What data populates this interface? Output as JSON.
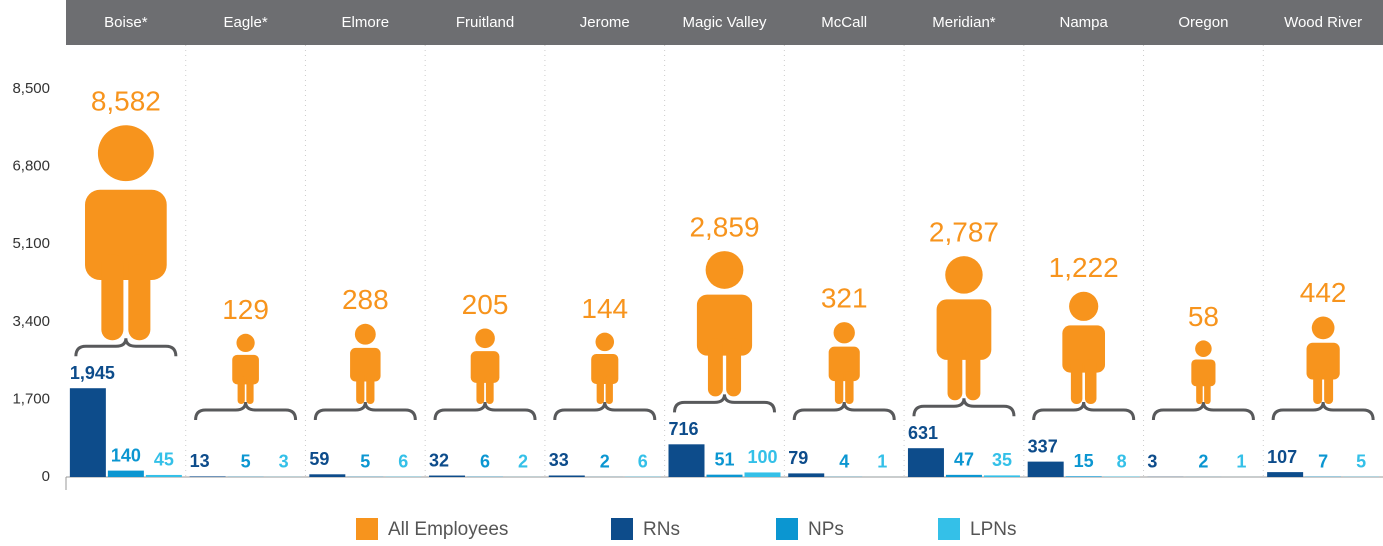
{
  "chart_data": {
    "type": "bar",
    "categories": [
      "Boise*",
      "Eagle*",
      "Elmore",
      "Fruitland",
      "Jerome",
      "Magic Valley",
      "McCall",
      "Meridian*",
      "Nampa",
      "Oregon",
      "Wood River"
    ],
    "series": [
      {
        "name": "All Employees",
        "color": "#f7941d",
        "values": [
          8582,
          129,
          288,
          205,
          144,
          2859,
          321,
          2787,
          1222,
          58,
          442
        ],
        "value_labels": [
          "8,582",
          "129",
          "288",
          "205",
          "144",
          "2,859",
          "321",
          "2,787",
          "1,222",
          "58",
          "442"
        ]
      },
      {
        "name": "RNs",
        "color": "#0d4c8b",
        "values": [
          1945,
          13,
          59,
          32,
          33,
          716,
          79,
          631,
          337,
          3,
          107
        ],
        "value_labels": [
          "1,945",
          "13",
          "59",
          "32",
          "33",
          "716",
          "79",
          "631",
          "337",
          "3",
          "107"
        ]
      },
      {
        "name": "NPs",
        "color": "#0b96d1",
        "values": [
          140,
          5,
          5,
          6,
          2,
          51,
          4,
          47,
          15,
          2,
          7
        ]
      },
      {
        "name": "LPNs",
        "color": "#34c0e8",
        "values": [
          45,
          3,
          6,
          2,
          6,
          100,
          1,
          35,
          8,
          1,
          5
        ]
      }
    ],
    "ylim": [
      0,
      8500
    ],
    "yticks": [
      0,
      {
        "value": 1700,
        "label": "1,700"
      },
      {
        "value": 3400,
        "label": "3,400"
      },
      {
        "value": 5100,
        "label": "5,100"
      },
      {
        "value": 6800,
        "label": "6,800"
      },
      {
        "value": 8500,
        "label": "8,500"
      }
    ],
    "grid": true
  }
}
